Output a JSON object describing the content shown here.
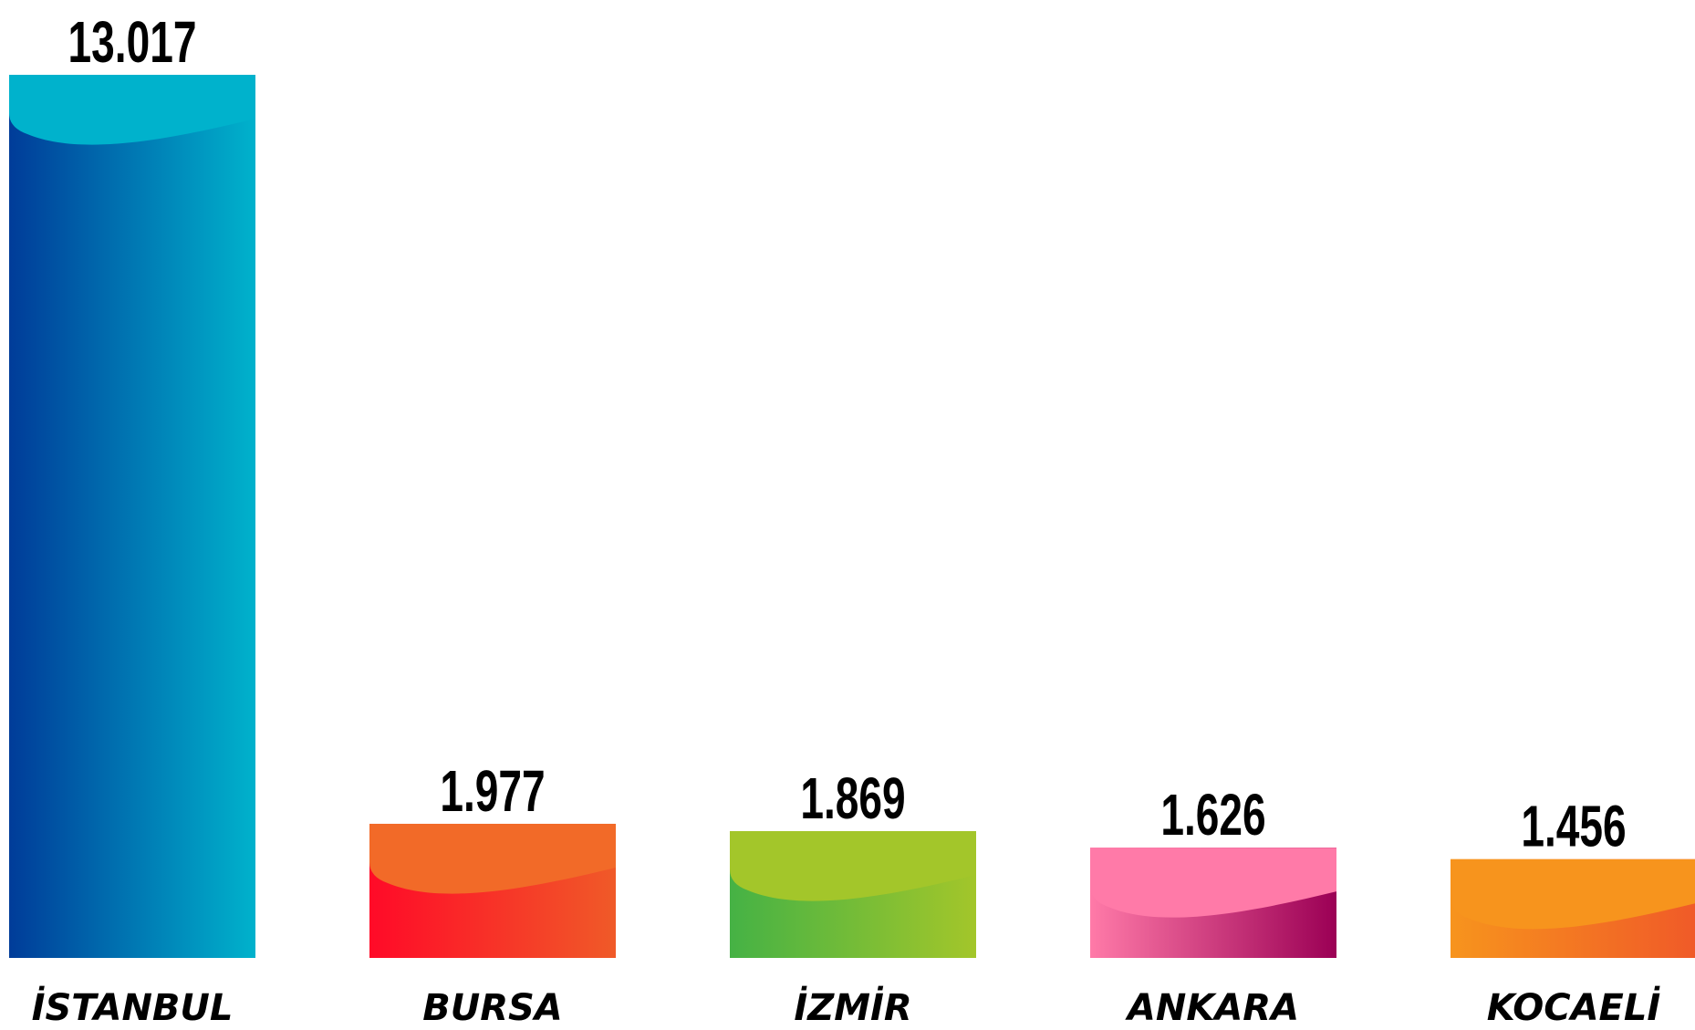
{
  "chart_data": {
    "type": "bar",
    "categories": [
      "İSTANBUL",
      "BURSA",
      "İZMİR",
      "ANKARA",
      "KOCAELİ"
    ],
    "values": [
      13017,
      1977,
      1869,
      1626,
      1456
    ],
    "value_labels": [
      "13.017",
      "1.977",
      "1.869",
      "1.626",
      "1.456"
    ],
    "colors": [
      [
        "#003c99",
        "#00b2cc"
      ],
      [
        "#ff0a28",
        "#f05a28"
      ],
      [
        "#45b245",
        "#a3c62a"
      ],
      [
        "#ff7aa8",
        "#9b0055"
      ],
      [
        "#f7941d",
        "#f05a28"
      ]
    ],
    "cap_colors": [
      "#00b2cc",
      "#f26a28",
      "#a3c62a",
      "#ff7aa8",
      "#f7941d"
    ]
  }
}
